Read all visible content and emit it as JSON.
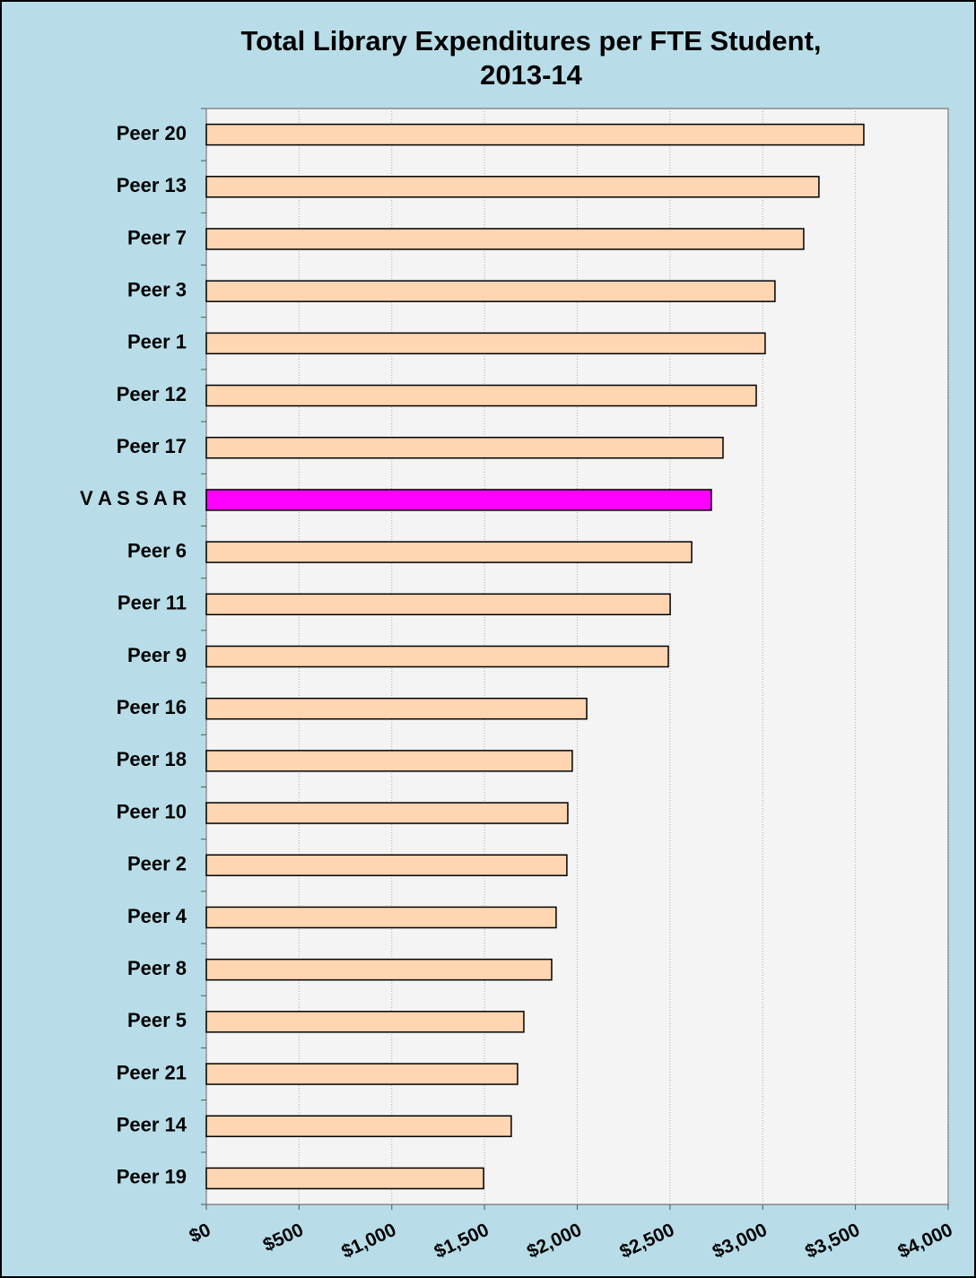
{
  "chart_data": {
    "type": "bar",
    "orientation": "horizontal",
    "title": [
      "Total Library Expenditures per FTE Student,",
      "2013-14"
    ],
    "categories": [
      "Peer 20",
      "Peer 13",
      "Peer 7",
      "Peer 3",
      "Peer 1",
      "Peer 12",
      "Peer 17",
      "V A S S A R",
      "Peer 6",
      "Peer 11",
      "Peer 9",
      "Peer 16",
      "Peer 18",
      "Peer 10",
      "Peer 2",
      "Peer 4",
      "Peer 8",
      "Peer 5",
      "Peer 21",
      "Peer 14",
      "Peer 19"
    ],
    "values": [
      3545,
      3303,
      3221,
      3066,
      3013,
      2965,
      2786,
      2723,
      2617,
      2501,
      2491,
      2051,
      1973,
      1949,
      1944,
      1886,
      1862,
      1712,
      1678,
      1644,
      1495
    ],
    "colors": [
      "#FFD5B2",
      "#FFD5B2",
      "#FFD5B2",
      "#FFD5B2",
      "#FFD5B2",
      "#FFD5B2",
      "#FFD5B2",
      "#FF00FF",
      "#FFD5B2",
      "#FFD5B2",
      "#FFD5B2",
      "#FFD5B2",
      "#FFD5B2",
      "#FFD5B2",
      "#FFD5B2",
      "#FFD5B2",
      "#FFD5B2",
      "#FFD5B2",
      "#FFD5B2",
      "#FFD5B2",
      "#FFD5B2"
    ],
    "xlim": [
      0,
      4000
    ],
    "xticks": [
      {
        "value": 0,
        "label": "$0"
      },
      {
        "value": 500,
        "label": "$500"
      },
      {
        "value": 1000,
        "label": "$1,000"
      },
      {
        "value": 1500,
        "label": "$1,500"
      },
      {
        "value": 2000,
        "label": "$2,000"
      },
      {
        "value": 2500,
        "label": "$2,500"
      },
      {
        "value": 3000,
        "label": "$3,000"
      },
      {
        "value": 3500,
        "label": "$3,500"
      },
      {
        "value": 4000,
        "label": "$4,000"
      }
    ],
    "grid": true
  }
}
